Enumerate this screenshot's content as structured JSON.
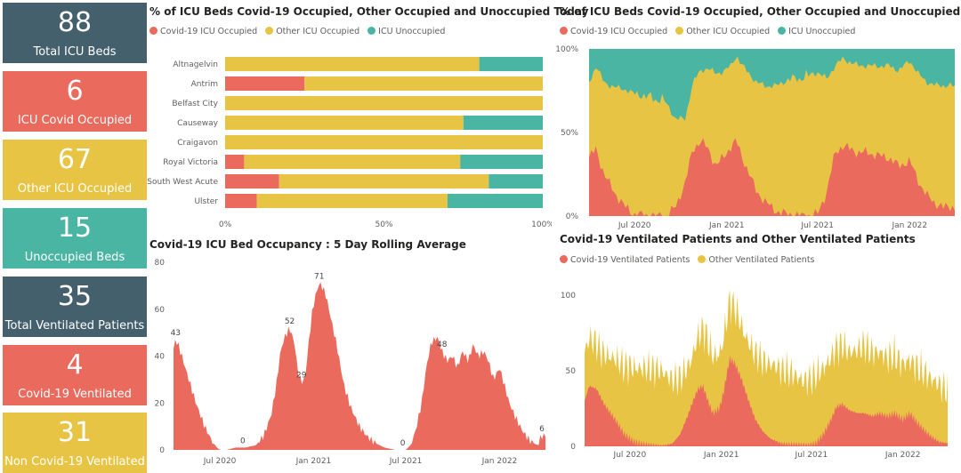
{
  "colors": {
    "covid": "#EB6A5E",
    "other": "#E8C444",
    "unocc": "#4BB5A4",
    "dark": "#44606D"
  },
  "kpis": [
    {
      "value": "88",
      "label": "Total ICU Beds",
      "color": "#44606D"
    },
    {
      "value": "6",
      "label": "ICU Covid Occupied",
      "color": "#EB6A5E"
    },
    {
      "value": "67",
      "label": "Other ICU Occupied",
      "color": "#E8C444"
    },
    {
      "value": "15",
      "label": "Unoccupied Beds",
      "color": "#4BB5A4"
    },
    {
      "value": "35",
      "label": "Total Ventilated Patients",
      "color": "#44606D"
    },
    {
      "value": "4",
      "label": "Covid-19 Ventilated",
      "color": "#EB6A5E"
    },
    {
      "value": "31",
      "label": "Non Covid-19 Ventilated",
      "color": "#E8C444"
    }
  ],
  "panels": {
    "today": {
      "title": "% of ICU Beds Covid-19 Occupied, Other Occupied and Unoccupied Today",
      "legend": [
        "Covid-19 ICU Occupied",
        "Other ICU Occupied",
        "ICU Unoccupied"
      ]
    },
    "history": {
      "title": "% of ICU Beds Covid-19 Occupied, Other Occupied and Unoccupied",
      "legend": [
        "Covid-19 ICU Occupied",
        "Other ICU Occupied",
        "ICU Unoccupied"
      ]
    },
    "rolling": {
      "title": "Covid-19 ICU Bed Occupancy : 5 Day Rolling Average"
    },
    "ventilated": {
      "title": "Covid-19 Ventilated Patients and Other Ventilated Patients",
      "legend": [
        "Covid-19 Ventilated Patients",
        "Other Ventilated Patients"
      ]
    }
  },
  "chart_data": [
    {
      "type": "bar",
      "orientation": "horizontal-stacked-100",
      "title": "% of ICU Beds Covid-19 Occupied, Other Occupied and Unoccupied Today",
      "categories": [
        "Altnagelvin",
        "Antrim",
        "Belfast City",
        "Causeway",
        "Craigavon",
        "Royal Victoria",
        "South West Acute",
        "Ulster"
      ],
      "series": [
        {
          "name": "Covid-19 ICU Occupied",
          "values": [
            0,
            25,
            0,
            0,
            0,
            6,
            17,
            10
          ]
        },
        {
          "name": "Other ICU Occupied",
          "values": [
            80,
            75,
            100,
            75,
            100,
            68,
            66,
            60
          ]
        },
        {
          "name": "ICU Unoccupied",
          "values": [
            20,
            0,
            0,
            25,
            0,
            26,
            17,
            30
          ]
        }
      ],
      "xticks": [
        "0%",
        "50%",
        "100%"
      ],
      "xlim": [
        0,
        100
      ]
    },
    {
      "type": "area",
      "stacking": "percent",
      "title": "% of ICU Beds Covid-19 Occupied, Other Occupied and Unoccupied",
      "x_start": "2020-04-01",
      "x_end": "2022-04-01",
      "xticks": [
        "Jul 2020",
        "Jan 2021",
        "Jul 2021",
        "Jan 2022"
      ],
      "yticks": [
        "0%",
        "50%",
        "100%"
      ],
      "ylim": [
        0,
        100
      ],
      "series": [
        {
          "name": "Covid-19 ICU Occupied",
          "dates": [
            "2020-04-01",
            "2020-04-15",
            "2020-05-01",
            "2020-05-20",
            "2020-06-10",
            "2020-07-01",
            "2020-08-01",
            "2020-09-01",
            "2020-09-20",
            "2020-10-10",
            "2020-10-25",
            "2020-11-10",
            "2020-11-25",
            "2020-12-10",
            "2020-12-25",
            "2021-01-10",
            "2021-01-20",
            "2021-02-01",
            "2021-02-15",
            "2021-03-01",
            "2021-03-20",
            "2021-04-10",
            "2021-05-01",
            "2021-06-01",
            "2021-07-01",
            "2021-07-20",
            "2021-08-05",
            "2021-08-20",
            "2021-09-05",
            "2021-09-20",
            "2021-10-10",
            "2021-11-01",
            "2021-11-20",
            "2021-12-10",
            "2022-01-01",
            "2022-01-20",
            "2022-02-05",
            "2022-02-20",
            "2022-03-10",
            "2022-03-25",
            "2022-04-01"
          ],
          "values": [
            35,
            40,
            25,
            15,
            6,
            1,
            0,
            0,
            5,
            20,
            40,
            45,
            40,
            30,
            35,
            42,
            45,
            35,
            25,
            15,
            8,
            3,
            1,
            0,
            1,
            15,
            38,
            42,
            40,
            38,
            38,
            36,
            35,
            30,
            33,
            20,
            12,
            8,
            5,
            6,
            5
          ]
        },
        {
          "name": "Other ICU Occupied",
          "dates": [
            "2020-04-01",
            "2020-05-01",
            "2020-06-10",
            "2020-07-01",
            "2020-08-01",
            "2020-09-01",
            "2020-10-10",
            "2020-11-10",
            "2020-12-10",
            "2021-01-10",
            "2021-02-01",
            "2021-03-01",
            "2021-04-10",
            "2021-05-01",
            "2021-06-01",
            "2021-07-01",
            "2021-08-05",
            "2021-09-05",
            "2021-10-10",
            "2021-11-20",
            "2021-12-10",
            "2022-01-01",
            "2022-02-05",
            "2022-03-10",
            "2022-04-01"
          ],
          "values": [
            45,
            55,
            70,
            72,
            70,
            68,
            38,
            42,
            55,
            48,
            55,
            65,
            75,
            80,
            82,
            85,
            52,
            52,
            52,
            55,
            57,
            60,
            68,
            73,
            72
          ]
        }
      ]
    },
    {
      "type": "area",
      "title": "Covid-19 ICU Bed Occupancy : 5 Day Rolling Average",
      "x_start": "2020-04-01",
      "x_end": "2022-04-01",
      "xticks": [
        "Jul 2020",
        "Jan 2021",
        "Jul 2021",
        "Jan 2022"
      ],
      "yticks": [
        0,
        20,
        40,
        60,
        80
      ],
      "ylim": [
        0,
        80
      ],
      "series": [
        {
          "name": "Covid-19 ICU Occupied",
          "dates": [
            "2020-04-01",
            "2020-04-05",
            "2020-04-10",
            "2020-04-20",
            "2020-05-01",
            "2020-05-15",
            "2020-06-01",
            "2020-06-15",
            "2020-06-25",
            "2020-07-01",
            "2020-07-15",
            "2020-08-01",
            "2020-08-20",
            "2020-09-10",
            "2020-09-25",
            "2020-10-10",
            "2020-10-20",
            "2020-10-28",
            "2020-11-05",
            "2020-11-15",
            "2020-11-25",
            "2020-12-01",
            "2020-12-08",
            "2020-12-15",
            "2020-12-22",
            "2020-12-30",
            "2021-01-05",
            "2021-01-12",
            "2021-01-17",
            "2021-01-25",
            "2021-02-05",
            "2021-02-15",
            "2021-03-01",
            "2021-03-15",
            "2021-04-01",
            "2021-04-15",
            "2021-05-01",
            "2021-05-20",
            "2021-06-10",
            "2021-06-25",
            "2021-07-01",
            "2021-07-10",
            "2021-07-20",
            "2021-08-01",
            "2021-08-10",
            "2021-08-20",
            "2021-09-01",
            "2021-09-10",
            "2021-09-20",
            "2021-10-01",
            "2021-10-10",
            "2021-10-20",
            "2021-11-01",
            "2021-11-10",
            "2021-11-20",
            "2021-12-01",
            "2021-12-10",
            "2021-12-20",
            "2022-01-01",
            "2022-01-10",
            "2022-01-20",
            "2022-02-01",
            "2022-02-15",
            "2022-03-01",
            "2022-03-15",
            "2022-03-25",
            "2022-04-01"
          ],
          "values": [
            43,
            47,
            45,
            38,
            30,
            20,
            10,
            4,
            1,
            0,
            0,
            1,
            1,
            2,
            6,
            15,
            28,
            42,
            48,
            52,
            45,
            33,
            29,
            30,
            45,
            60,
            66,
            71,
            70,
            66,
            55,
            45,
            28,
            18,
            10,
            6,
            3,
            1,
            0,
            0,
            0,
            2,
            8,
            20,
            35,
            46,
            48,
            42,
            38,
            40,
            35,
            42,
            38,
            45,
            40,
            42,
            38,
            30,
            35,
            28,
            20,
            14,
            8,
            4,
            2,
            6,
            6
          ]
        }
      ],
      "annotations": [
        {
          "date": "2020-04-05",
          "label": "43"
        },
        {
          "date": "2020-08-15",
          "label": "0"
        },
        {
          "date": "2020-11-15",
          "label": "52"
        },
        {
          "date": "2020-12-08",
          "label": "29"
        },
        {
          "date": "2021-01-12",
          "label": "71"
        },
        {
          "date": "2021-06-25",
          "label": "0"
        },
        {
          "date": "2021-09-10",
          "label": "48"
        },
        {
          "date": "2022-03-25",
          "label": "6"
        }
      ]
    },
    {
      "type": "area",
      "stacking": "stacked",
      "title": "Covid-19 Ventilated Patients and Other Ventilated Patients",
      "x_start": "2020-04-01",
      "x_end": "2022-04-01",
      "xticks": [
        "Jul 2020",
        "Jan 2021",
        "Jul 2021",
        "Jan 2022"
      ],
      "yticks": [
        0,
        50,
        100
      ],
      "ylim": [
        0,
        110
      ],
      "series": [
        {
          "name": "Covid-19 Ventilated Patients",
          "dates": [
            "2020-04-01",
            "2020-04-10",
            "2020-04-25",
            "2020-05-10",
            "2020-06-01",
            "2020-06-20",
            "2020-07-10",
            "2020-08-01",
            "2020-09-01",
            "2020-09-25",
            "2020-10-10",
            "2020-10-25",
            "2020-11-05",
            "2020-11-15",
            "2020-11-25",
            "2020-12-05",
            "2020-12-15",
            "2020-12-28",
            "2021-01-05",
            "2021-01-12",
            "2021-01-18",
            "2021-01-28",
            "2021-02-10",
            "2021-02-25",
            "2021-03-10",
            "2021-03-25",
            "2021-04-10",
            "2021-05-01",
            "2021-06-01",
            "2021-06-25",
            "2021-07-10",
            "2021-07-25",
            "2021-08-10",
            "2021-08-20",
            "2021-09-01",
            "2021-09-15",
            "2021-10-01",
            "2021-10-15",
            "2021-11-01",
            "2021-11-15",
            "2021-12-01",
            "2021-12-15",
            "2022-01-01",
            "2022-01-15",
            "2022-02-01",
            "2022-02-15",
            "2022-03-01",
            "2022-03-15",
            "2022-04-01"
          ],
          "values": [
            30,
            40,
            38,
            28,
            18,
            8,
            3,
            1,
            0,
            2,
            8,
            20,
            30,
            38,
            40,
            30,
            22,
            25,
            35,
            48,
            58,
            55,
            45,
            30,
            18,
            10,
            5,
            2,
            1,
            0,
            2,
            8,
            18,
            26,
            28,
            24,
            22,
            22,
            20,
            22,
            20,
            22,
            18,
            22,
            15,
            10,
            6,
            3,
            2
          ]
        },
        {
          "name": "Other Ventilated Patients",
          "dates": [
            "2020-04-01",
            "2020-05-01",
            "2020-06-01",
            "2020-07-01",
            "2020-08-01",
            "2020-09-01",
            "2020-10-01",
            "2020-11-01",
            "2020-12-01",
            "2021-01-01",
            "2021-01-18",
            "2021-02-15",
            "2021-03-15",
            "2021-04-15",
            "2021-05-15",
            "2021-06-15",
            "2021-07-15",
            "2021-08-15",
            "2021-09-15",
            "2021-10-15",
            "2021-11-15",
            "2021-12-15",
            "2022-01-15",
            "2022-02-15",
            "2022-03-15",
            "2022-04-01"
          ],
          "values": [
            32,
            30,
            40,
            48,
            50,
            50,
            40,
            30,
            40,
            35,
            38,
            35,
            45,
            50,
            48,
            42,
            45,
            40,
            38,
            45,
            40,
            38,
            35,
            38,
            38,
            35
          ]
        }
      ]
    }
  ]
}
